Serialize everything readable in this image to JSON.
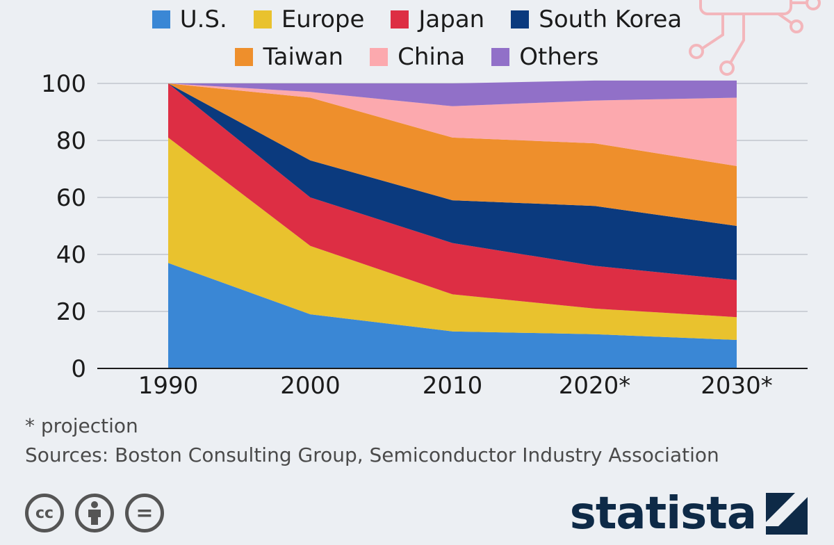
{
  "chart_data": {
    "type": "area",
    "stacked": true,
    "categories": [
      "1990",
      "2000",
      "2010",
      "2020*",
      "2030*"
    ],
    "series": [
      {
        "name": "U.S.",
        "color": "#3a87d5",
        "values": [
          37,
          19,
          13,
          12,
          10
        ]
      },
      {
        "name": "Europe",
        "color": "#e9c22e",
        "values": [
          44,
          24,
          13,
          9,
          8
        ]
      },
      {
        "name": "Japan",
        "color": "#dd2e44",
        "values": [
          19,
          17,
          18,
          15,
          13
        ]
      },
      {
        "name": "South Korea",
        "color": "#0b3a7e",
        "values": [
          0,
          13,
          15,
          21,
          19
        ]
      },
      {
        "name": "Taiwan",
        "color": "#ee8f2c",
        "values": [
          0,
          22,
          22,
          22,
          21
        ]
      },
      {
        "name": "China",
        "color": "#fca9ae",
        "values": [
          0,
          2,
          11,
          15,
          24
        ]
      },
      {
        "name": "Others",
        "color": "#9170c8",
        "values": [
          0,
          3,
          8,
          7,
          6
        ]
      }
    ],
    "y_ticks": [
      "0",
      "20",
      "40",
      "60",
      "80",
      "100"
    ],
    "ylim": [
      0,
      100
    ],
    "legend_position": "top",
    "grid": true
  },
  "footnote": "* projection",
  "source": "Sources: Boston Consulting Group, Semiconductor Industry Association",
  "license_icons": [
    "cc-icon",
    "by-icon",
    "nd-icon"
  ],
  "license_labels": {
    "cc": "cc",
    "nd": "="
  },
  "brand": {
    "name": "statista",
    "color": "#0e2a47"
  }
}
